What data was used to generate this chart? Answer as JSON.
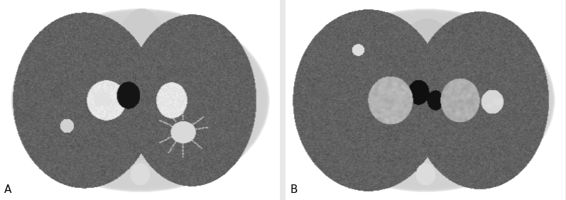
{
  "figsize": [
    7.97,
    2.82
  ],
  "dpi": 100,
  "background_color": "#e8e8e8",
  "label_A": "A",
  "label_B": "B",
  "label_color": "#000000",
  "label_fontsize": 11,
  "label_fontweight": "normal",
  "panel_A": {
    "body_gray": 0.82,
    "lung_gray": 0.38,
    "mediastinum_gray": 0.8,
    "aorta_gray": 0.08,
    "vessel_gray": 0.95,
    "nodule_gray": 0.88,
    "outer_bg": 0.88,
    "lung_noise": 0.04
  },
  "panel_B": {
    "body_gray": 0.82,
    "lung_gray": 0.38,
    "mediastinum_gray": 0.78,
    "aorta_gray": 0.08,
    "vessel_gray": 0.95,
    "nodule_gray": 0.88,
    "outer_bg": 0.88,
    "lung_noise": 0.04
  }
}
